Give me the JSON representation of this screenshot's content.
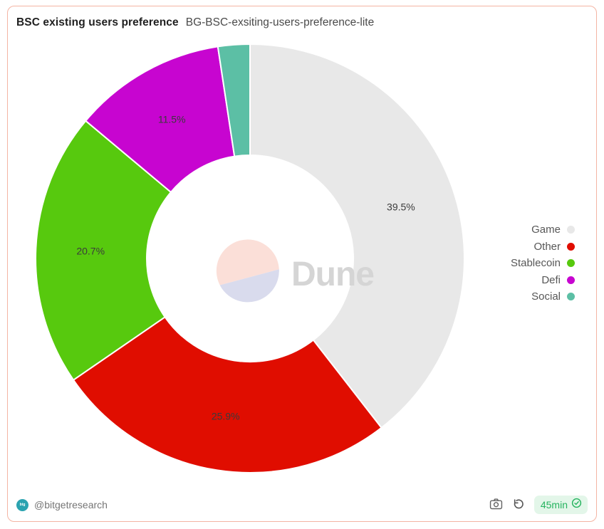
{
  "header": {
    "title": "BSC existing users preference",
    "subtitle": "BG-BSC-exsiting-users-preference-lite"
  },
  "chart_data": {
    "type": "pie",
    "donut": true,
    "title": "BSC existing users preference",
    "start_angle_deg": 0,
    "direction": "clockwise-from-top",
    "legend_position": "right",
    "slices": [
      {
        "label": "Game",
        "value": 39.5,
        "pct_label": "39.5%",
        "color": "#e8e8e8"
      },
      {
        "label": "Other",
        "value": 25.9,
        "pct_label": "25.9%",
        "color": "#e00d00"
      },
      {
        "label": "Stablecoin",
        "value": 20.7,
        "pct_label": "20.7%",
        "color": "#57c90e"
      },
      {
        "label": "Defi",
        "value": 11.5,
        "pct_label": "11.5%",
        "color": "#c705d0"
      },
      {
        "label": "Social",
        "value": 2.4,
        "pct_label": "",
        "color": "#5cbfa5"
      }
    ]
  },
  "watermark": {
    "text": "Dune",
    "logo_top_color": "#fbdfd8",
    "logo_bottom_color": "#d9dbed",
    "text_color": "#d5d5d5"
  },
  "footer": {
    "author": "@bitgetresearch",
    "avatar_text": "btg",
    "refresh_interval": "45min",
    "icons": [
      "camera-icon",
      "refresh-icon",
      "verified-check-icon"
    ]
  },
  "colors": {
    "card_border": "#f4b4a3",
    "badge_text": "#26b35f",
    "badge_bg": "#e3f6e9",
    "avatar_bg": "#2ba3b0",
    "legend_text": "#575757"
  }
}
